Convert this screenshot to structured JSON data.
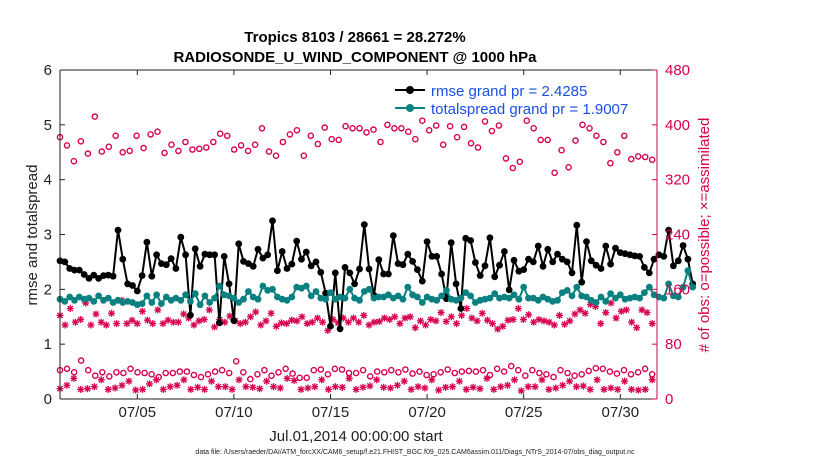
{
  "colors": {
    "rmse": "#000000",
    "spread": "#0b8080",
    "obs": "#d6004f",
    "legend_text": "#1a4fe6",
    "axis": "#222222"
  },
  "footer": "data file: /Users/raeder/DAI/ATM_forcXX/CAM6_setup/f.e21.FHIST_BGC.f09_025.CAM6assim.011/Diags_NTrS_2014-07/obs_diag_output.nc",
  "chart_data": {
    "type": "line",
    "title": "Tropics 8103 / 28661 = 28.272%",
    "subtitle": "RADIOSONDE_U_WIND_COMPONENT @ 1000 hPa",
    "xlabel": "Jul.01,2014 00:00:00 start",
    "ylabel": "rmse and totalspread",
    "ylabel_right": "# of obs: o=possible; ×=assimilated",
    "xlim": [
      1.0,
      31.9
    ],
    "ylim": [
      0,
      6
    ],
    "ylim_right": [
      0,
      480
    ],
    "xticks": [
      5,
      10,
      15,
      20,
      25,
      30
    ],
    "xtick_labels": [
      "07/05",
      "07/10",
      "07/15",
      "07/20",
      "07/25",
      "07/30"
    ],
    "yticks": [
      0,
      1,
      2,
      3,
      4,
      5,
      6
    ],
    "ytick_labels": [
      "0",
      "1",
      "2",
      "3",
      "4",
      "5",
      "6"
    ],
    "yticks_right": [
      0,
      80,
      160,
      240,
      320,
      400,
      480
    ],
    "ytick_labels_right": [
      "0",
      "80",
      "160",
      "240",
      "320",
      "400",
      "480"
    ],
    "legend_location": "top-right",
    "legend": [
      {
        "key": "rmse",
        "label": "rmse grand pr = 2.4285"
      },
      {
        "key": "spread",
        "label": "totalspread grand pr = 1.9007"
      }
    ],
    "time_step_days": 0.25,
    "series": [
      {
        "name": "rmse",
        "axis": "left",
        "marker": "filled-circle",
        "values": [
          2.52,
          2.5,
          2.38,
          2.35,
          2.35,
          2.27,
          2.2,
          2.26,
          2.2,
          2.25,
          2.26,
          2.24,
          3.08,
          2.55,
          2.1,
          2.07,
          1.97,
          2.25,
          2.86,
          2.24,
          2.63,
          2.47,
          2.45,
          2.56,
          2.38,
          2.95,
          2.63,
          1.53,
          2.74,
          2.42,
          2.64,
          2.63,
          2.63,
          1.39,
          2.6,
          2.1,
          1.43,
          2.83,
          2.51,
          2.47,
          2.42,
          2.73,
          2.57,
          2.63,
          3.25,
          2.34,
          2.69,
          2.38,
          2.46,
          2.88,
          2.55,
          2.68,
          2.43,
          2.5,
          2.31,
          1.93,
          1.33,
          2.3,
          1.28,
          2.4,
          2.3,
          2.1,
          2.37,
          3.18,
          2.37,
          1.89,
          2.54,
          2.28,
          2.28,
          2.98,
          2.47,
          2.45,
          2.64,
          2.51,
          2.36,
          2.15,
          2.87,
          2.6,
          2.6,
          2.28,
          1.83,
          2.85,
          2.1,
          1.65,
          2.93,
          2.89,
          2.49,
          2.25,
          2.43,
          2.94,
          2.23,
          2.44,
          2.69,
          1.99,
          2.53,
          2.33,
          2.36,
          2.55,
          2.5,
          2.79,
          2.42,
          2.73,
          2.5,
          2.64,
          2.55,
          2.5,
          2.3,
          3.17,
          2.13,
          2.87,
          2.52,
          2.44,
          2.38,
          2.79,
          2.46,
          2.75,
          2.67,
          2.65,
          2.63,
          2.61,
          2.6,
          2.4,
          2.3,
          2.55,
          2.63,
          2.6,
          3.08,
          2.43,
          2.52,
          2.8,
          2.55,
          2.1
        ],
        "color_key": "rmse"
      },
      {
        "name": "totalspread",
        "axis": "left",
        "marker": "filled-circle",
        "values": [
          1.82,
          1.78,
          1.86,
          1.8,
          1.86,
          1.82,
          1.84,
          1.78,
          1.88,
          1.8,
          1.84,
          1.76,
          1.8,
          1.76,
          1.78,
          1.76,
          1.72,
          1.74,
          1.88,
          1.76,
          1.9,
          1.74,
          1.86,
          1.8,
          1.84,
          1.8,
          1.9,
          1.78,
          1.92,
          1.72,
          1.88,
          1.76,
          1.84,
          2.06,
          1.9,
          1.88,
          1.84,
          1.76,
          1.82,
          1.96,
          1.86,
          1.82,
          2.06,
          1.98,
          2.0,
          1.86,
          1.82,
          1.8,
          1.86,
          2.04,
          2.02,
          2.06,
          1.88,
          1.96,
          1.84,
          1.82,
          1.94,
          1.82,
          1.86,
          1.84,
          2.0,
          1.84,
          1.8,
          1.96,
          2.0,
          1.84,
          1.86,
          1.86,
          1.9,
          1.84,
          1.88,
          1.82,
          2.04,
          1.9,
          1.86,
          1.76,
          1.86,
          1.82,
          1.8,
          1.88,
          1.98,
          1.82,
          1.8,
          1.84,
          1.94,
          1.88,
          1.76,
          1.8,
          1.82,
          1.84,
          1.92,
          1.84,
          1.86,
          1.84,
          1.9,
          1.82,
          2.04,
          1.84,
          1.84,
          1.8,
          1.86,
          1.82,
          1.78,
          1.8,
          1.94,
          1.98,
          1.88,
          2.04,
          1.88,
          1.86,
          1.8,
          1.76,
          1.86,
          1.78,
          1.92,
          1.84,
          1.9,
          1.82,
          1.84,
          1.86,
          1.84,
          1.94,
          2.04,
          1.9,
          1.86,
          1.84,
          2.1,
          1.88,
          1.86,
          2.04,
          2.34,
          2.04
        ],
        "color_key": "spread"
      },
      {
        "name": "obs possible (upper band)",
        "axis": "right",
        "marker": "open-circle",
        "values": [
          382,
          370,
          347,
          376,
          358,
          412,
          361,
          368,
          384,
          360,
          362,
          384,
          366,
          386,
          390,
          359,
          371,
          362,
          375,
          364,
          365,
          367,
          375,
          387,
          384,
          364,
          370,
          362,
          371,
          395,
          361,
          355,
          375,
          386,
          392,
          355,
          384,
          372,
          396,
          379,
          378,
          398,
          395,
          395,
          389,
          393,
          375,
          400,
          395,
          395,
          390,
          379,
          406,
          392,
          399,
          371,
          398,
          382,
          397,
          373,
          367,
          405,
          391,
          399,
          351,
          337,
          346,
          406,
          395,
          378,
          378,
          330,
          363,
          338,
          377,
          400,
          395,
          384,
          375,
          344,
          360,
          384,
          350,
          354,
          353,
          349
        ],
        "color_key": "obs"
      },
      {
        "name": "obs possible (lower band)",
        "axis": "right",
        "marker": "open-circle",
        "values": [
          42,
          44,
          39,
          56,
          42,
          34,
          39,
          33,
          39,
          38,
          44,
          39,
          38,
          36,
          32,
          38,
          38,
          40,
          40,
          35,
          32,
          36,
          40,
          42,
          38,
          55,
          39,
          29,
          36,
          42,
          34,
          39,
          44,
          37,
          31,
          31,
          42,
          43,
          36,
          44,
          43,
          38,
          38,
          42,
          33,
          40,
          39,
          42,
          39,
          43,
          37,
          40,
          35,
          36,
          39,
          43,
          38,
          40,
          41,
          40,
          42,
          35,
          44,
          40,
          48,
          42,
          34,
          42,
          38,
          36,
          32,
          42,
          38,
          34,
          36,
          41,
          45,
          44,
          40,
          37,
          42,
          36,
          39,
          44,
          36
        ],
        "color_key": "obs"
      },
      {
        "name": "obs assimilated (upper band)",
        "axis": "right",
        "marker": "asterisk",
        "values": [
          122,
          108,
          132,
          112,
          116,
          140,
          108,
          124,
          112,
          108,
          125,
          110,
          144,
          110,
          115,
          110,
          128,
          115,
          110,
          130,
          110,
          115,
          112,
          112,
          124,
          118,
          108,
          114,
          116,
          130,
          105,
          116,
          112,
          121,
          114,
          110,
          112,
          120,
          127,
          108,
          114,
          125,
          106,
          111,
          110,
          115,
          114,
          120,
          110,
          112,
          118,
          112,
          100,
          116,
          111,
          118,
          112,
          118,
          112,
          122,
          108,
          112,
          113,
          118,
          116,
          120,
          110,
          118,
          120,
          104,
          114,
          108,
          116,
          114,
          126,
          113,
          120,
          110,
          122,
          132,
          118,
          114,
          125,
          115,
          110,
          102,
          106,
          115,
          116,
          132,
          116,
          123,
          112,
          116,
          114,
          112,
          108,
          122,
          109,
          114,
          124,
          130,
          125,
          138,
          135,
          110,
          126,
          140,
          118,
          128,
          130,
          112,
          104,
          130,
          126,
          110
        ],
        "color_key": "obs"
      },
      {
        "name": "obs assimilated (lower band)",
        "axis": "right",
        "marker": "asterisk",
        "values": [
          15,
          20,
          30,
          14,
          15,
          18,
          28,
          14,
          16,
          20,
          26,
          13,
          14,
          22,
          28,
          14,
          18,
          20,
          28,
          14,
          17,
          14,
          26,
          18,
          18,
          14,
          28,
          18,
          17,
          15,
          26,
          18,
          16,
          30,
          27,
          14,
          16,
          18,
          28,
          14,
          18,
          17,
          30,
          14,
          17,
          19,
          28,
          17,
          16,
          20,
          26,
          14,
          18,
          16,
          28,
          13,
          17,
          18,
          26,
          14,
          17,
          15,
          30,
          14,
          18,
          20,
          28,
          12,
          18,
          18,
          28,
          14,
          16,
          20,
          26,
          18,
          19,
          14,
          28,
          14,
          16,
          14,
          26,
          14,
          13,
          14,
          28
        ]
      }
    ]
  }
}
